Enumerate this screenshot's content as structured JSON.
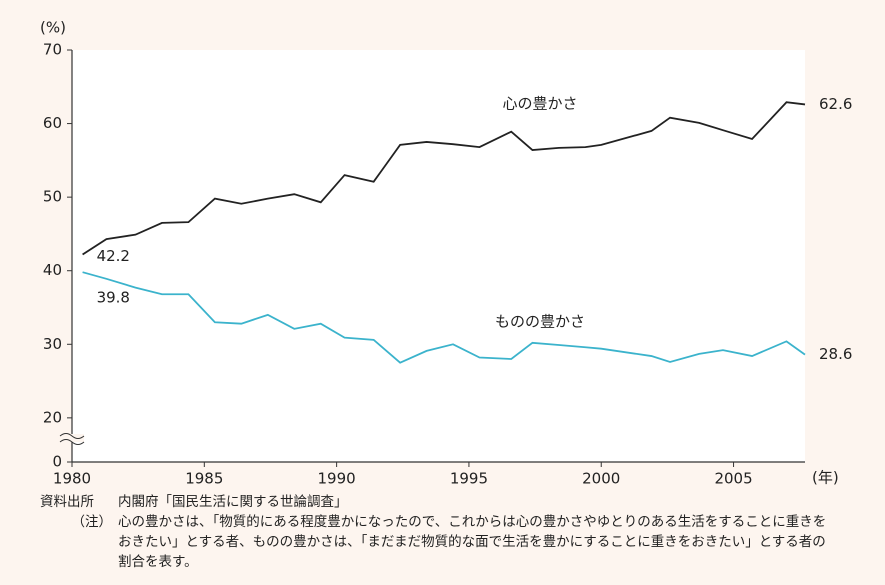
{
  "chart_data": {
    "type": "line",
    "y_label": "(%)",
    "x_label": "(年)",
    "x": [
      1980.4,
      1981.3,
      1982.4,
      1983.4,
      1984.4,
      1985.4,
      1986.4,
      1987.4,
      1988.4,
      1989.4,
      1990.3,
      1991.4,
      1992.4,
      1993.4,
      1994.4,
      1995.4,
      1996.6,
      1997.4,
      1998.4,
      1999.4,
      2000.0,
      2001.9,
      2002.6,
      2003.7,
      2004.6,
      2005.7,
      2007.0,
      2007.7
    ],
    "series": [
      {
        "name": "心の豊かさ",
        "color": "#222222",
        "values": [
          42.2,
          44.3,
          44.9,
          46.5,
          46.6,
          49.8,
          49.1,
          49.8,
          50.4,
          49.3,
          53.0,
          52.1,
          57.1,
          57.5,
          57.2,
          56.8,
          58.9,
          56.4,
          56.7,
          56.8,
          57.1,
          59.0,
          60.8,
          60.1,
          59.1,
          57.9,
          62.9,
          62.6
        ]
      },
      {
        "name": "ものの豊かさ",
        "color": "#3bb3cc",
        "values": [
          39.8,
          38.9,
          37.7,
          36.8,
          36.8,
          33.0,
          32.8,
          34.0,
          32.1,
          32.8,
          30.9,
          30.6,
          27.5,
          29.1,
          30.0,
          28.2,
          28.0,
          30.2,
          29.9,
          29.6,
          29.4,
          28.4,
          27.6,
          28.7,
          29.2,
          28.4,
          30.4,
          28.6
        ]
      }
    ],
    "xlim": [
      1980,
      2007.7
    ],
    "xticks": [
      1980,
      1985,
      1990,
      1995,
      2000,
      2005
    ],
    "ylim": [
      14,
      70
    ],
    "yticks": [
      0,
      20,
      30,
      40,
      50,
      60,
      70
    ],
    "axis_break": true,
    "source_label": "資料出所",
    "source": "内閣府「国民生活に関する世論調査」",
    "note_label": "（注）",
    "note": "心の豊かさは、「物質的にある程度豊かになったので、これからは心の豊かさやゆとりのある生活をすることに重きをおきたい」とする者、ものの豊かさは、「まだまだ物質的な面で生活を豊かにすることに重きをおきたい」とする者の割合を表す。"
  }
}
